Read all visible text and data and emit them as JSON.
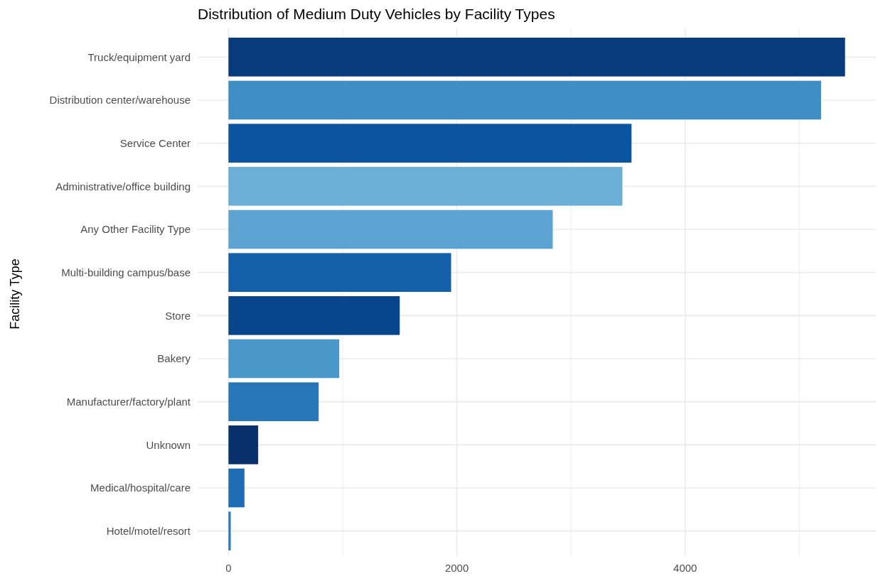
{
  "chart_data": {
    "type": "bar",
    "orientation": "horizontal",
    "title": "Distribution of Medium Duty Vehicles by Facility Types",
    "ylabel": "Facility Type",
    "categories": [
      "Truck/equipment yard",
      "Distribution center/warehouse",
      "Service Center",
      "Administrative/office building",
      "Any Other Facility Type",
      "Multi-building campus/base",
      "Store",
      "Bakery",
      "Manufacturer/factory/plant",
      "Unknown",
      "Medical/hospital/care",
      "Hotel/motel/resort"
    ],
    "values": [
      5400,
      5190,
      3530,
      3450,
      2840,
      1950,
      1500,
      970,
      790,
      260,
      140,
      20
    ],
    "colors": [
      "#083b7b",
      "#3f8fc5",
      "#0b55a0",
      "#6baed6",
      "#5ca3d1",
      "#1561a9",
      "#08468b",
      "#4a98c9",
      "#2676b8",
      "#08306b",
      "#1e6db2",
      "#2a7ab9"
    ],
    "xlim": [
      -270,
      5670
    ],
    "xticks": [
      0,
      {
        "value": 1000,
        "label": null
      },
      2000,
      {
        "value": 3000,
        "label": null
      },
      4000,
      {
        "value": 5000,
        "label": null
      }
    ],
    "grid": true
  }
}
